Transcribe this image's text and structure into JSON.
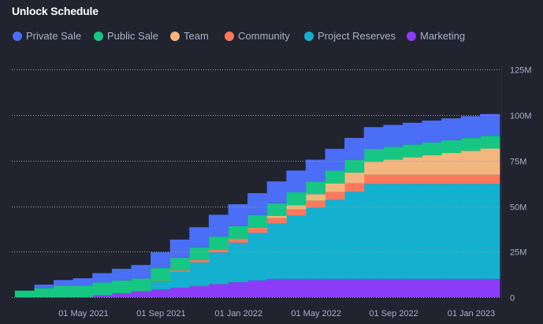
{
  "title": "Unlock Schedule",
  "chart_data": {
    "type": "area",
    "step": true,
    "stacked": true,
    "title": "Unlock Schedule",
    "xlabel": "",
    "ylabel": "",
    "x_start_dates": [
      "2021-01-15",
      "2021-02-15",
      "2021-03-15",
      "2021-04-15",
      "2021-05-15",
      "2021-06-15",
      "2021-07-15",
      "2021-08-15",
      "2021-09-15",
      "2021-10-15",
      "2021-11-15",
      "2021-12-15",
      "2022-01-15",
      "2022-02-15",
      "2022-03-15",
      "2022-04-15",
      "2022-05-15",
      "2022-06-15",
      "2022-07-15",
      "2022-08-15",
      "2022-09-15",
      "2022-10-15",
      "2022-11-15",
      "2022-12-15",
      "2023-01-15"
    ],
    "x_end_date": "2023-02-15",
    "x_ticks": [
      "01 May 2021",
      "01 Sep 2021",
      "01 Jan 2022",
      "01 May 2022",
      "01 Sep 2022",
      "01 Jan 2023"
    ],
    "x_tick_dates": [
      "2021-05-01",
      "2021-09-01",
      "2022-01-01",
      "2022-05-01",
      "2022-09-01",
      "2023-01-01"
    ],
    "y_ticks": [
      "0",
      "25M",
      "50M",
      "75M",
      "100M",
      "125M"
    ],
    "y_tick_values": [
      0,
      25,
      50,
      75,
      100,
      125
    ],
    "ylim": [
      0,
      125
    ],
    "y_unit": "M",
    "grid": true,
    "y_axis_position": "right",
    "legend_position": "top-left",
    "series": [
      {
        "name": "Marketing",
        "color": "#8c3cf6",
        "values": [
          0,
          0,
          0,
          0,
          1,
          2.2,
          3.2,
          4.2,
          5.2,
          6.1,
          7.2,
          8.2,
          9.2,
          10,
          10,
          10,
          10,
          10,
          10,
          10,
          10,
          10,
          10,
          10,
          10
        ]
      },
      {
        "name": "Project Reserves",
        "color": "#13b1cf",
        "values": [
          0,
          0,
          0,
          0,
          0,
          0,
          0,
          4.35,
          8.7,
          13.05,
          17.4,
          21.75,
          26.1,
          30.45,
          34.8,
          39.15,
          43.5,
          47.85,
          52.2,
          52.2,
          52.2,
          52.2,
          52.2,
          52.2,
          52.2
        ]
      },
      {
        "name": "Community",
        "color": "#fe785c",
        "values": [
          0,
          0,
          0,
          0,
          0,
          0,
          0,
          0.42,
          0.84,
          1.26,
          1.68,
          2.1,
          2.52,
          2.94,
          3.36,
          3.78,
          4.2,
          4.62,
          5.0,
          5.0,
          5.0,
          5.0,
          5.0,
          5.0,
          5.0
        ]
      },
      {
        "name": "Team",
        "color": "#f3b67f",
        "values": [
          0,
          0,
          0,
          0,
          0,
          0,
          0,
          0,
          0,
          0,
          0,
          0,
          0.3,
          1.2,
          2.4,
          3.6,
          4.8,
          6.0,
          7.2,
          8.4,
          9.6,
          10.8,
          12.0,
          13.2,
          14.4
        ]
      },
      {
        "name": "Public Sale",
        "color": "#16c784",
        "values": [
          3.6,
          4.9,
          6.4,
          6.4,
          7,
          7,
          7,
          7,
          7,
          7,
          7,
          7,
          7,
          7,
          7,
          7,
          7,
          7,
          7,
          7,
          7,
          7,
          7,
          7,
          7
        ]
      },
      {
        "name": "Private Sale",
        "color": "#4a6ef5",
        "values": [
          0,
          2,
          3,
          4,
          5.2,
          6.4,
          7.5,
          8.7,
          9.9,
          11,
          12,
          12,
          12,
          12,
          12,
          12,
          12,
          12,
          12,
          12,
          12,
          12,
          12,
          12,
          12
        ]
      }
    ]
  },
  "legend": [
    {
      "label": "Private Sale",
      "color": "#4a6ef5"
    },
    {
      "label": "Public Sale",
      "color": "#16c784"
    },
    {
      "label": "Team",
      "color": "#f3b67f"
    },
    {
      "label": "Community",
      "color": "#fe785c"
    },
    {
      "label": "Project Reserves",
      "color": "#13b1cf"
    },
    {
      "label": "Marketing",
      "color": "#8c3cf6"
    }
  ]
}
